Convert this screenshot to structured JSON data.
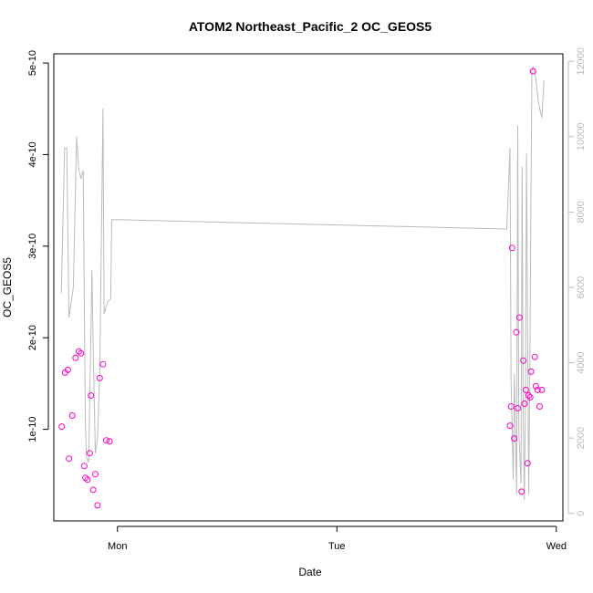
{
  "chart_data": {
    "type": "scatter",
    "title": "ATOM2 Northeast_Pacific_2 OC_GEOS5",
    "xlabel": "Date",
    "ylabel": "OC_GEOS5",
    "x_ticks": [
      "Mon",
      "Tue",
      "Wed"
    ],
    "y_ticks": [
      "1e-10",
      "2e-10",
      "3e-10",
      "4e-10",
      "5e-10"
    ],
    "y_tick_values": [
      1e-10,
      2e-10,
      3e-10,
      4e-10,
      5e-10
    ],
    "y2_ticks": [
      "0",
      "2000",
      "4000",
      "6000",
      "8000",
      "10000",
      "12000"
    ],
    "y2_tick_values": [
      0,
      2000,
      4000,
      6000,
      8000,
      10000,
      12000
    ],
    "xlim": [
      -0.29,
      2.03
    ],
    "ylim": [
      0.0,
      5.1e-10
    ],
    "y2lim": [
      -200,
      12200
    ],
    "grid": false,
    "colors": {
      "points": "#ff00cc",
      "line": "#bbbbbb",
      "axis": "#000000",
      "axis_right": "#bbbbbb"
    },
    "series": [
      {
        "type": "scatter",
        "axis": "left",
        "x": [
          -0.254,
          -0.239,
          -0.226,
          -0.221,
          -0.206,
          -0.191,
          -0.176,
          -0.166,
          -0.151,
          -0.146,
          -0.136,
          -0.126,
          -0.121,
          -0.111,
          -0.101,
          -0.091,
          -0.081,
          -0.066,
          -0.051,
          -0.036,
          1.789,
          1.794,
          1.799,
          1.808,
          1.818,
          1.824,
          1.832,
          1.842,
          1.85,
          1.855,
          1.861,
          1.869,
          1.874,
          1.881,
          1.885,
          1.894,
          1.902,
          1.907,
          1.915,
          1.924,
          1.934
        ],
        "y": [
          1.03e-10,
          1.62e-10,
          1.65e-10,
          6.8e-11,
          1.15e-10,
          1.78e-10,
          1.85e-10,
          1.83e-10,
          6e-11,
          4.7e-11,
          4.5e-11,
          7.4e-11,
          1.37e-10,
          3.4e-11,
          5.1e-11,
          1.7e-11,
          1.56e-10,
          1.71e-10,
          8.8e-11,
          8.7e-11,
          1.04e-10,
          1.25e-10,
          2.98e-10,
          9e-11,
          2.06e-10,
          1.23e-10,
          2.22e-10,
          3.2e-11,
          1.75e-10,
          1.28e-10,
          1.43e-10,
          6.3e-11,
          1.37e-10,
          1.35e-10,
          1.63e-10,
          4.91e-10,
          1.79e-10,
          1.47e-10,
          1.43e-10,
          1.25e-10,
          1.43e-10
        ]
      },
      {
        "type": "line",
        "axis": "right",
        "x": [
          -0.256,
          -0.241,
          -0.231,
          -0.221,
          -0.201,
          -0.186,
          -0.176,
          -0.166,
          -0.156,
          -0.146,
          -0.141,
          -0.131,
          -0.116,
          -0.111,
          -0.101,
          -0.091,
          -0.081,
          -0.066,
          -0.061,
          -0.046,
          -0.031,
          -0.026,
          1.774,
          1.789,
          1.794,
          1.804,
          1.809,
          1.819,
          1.824,
          1.829,
          1.839,
          1.844,
          1.849,
          1.854,
          1.859,
          1.864,
          1.874,
          1.879,
          1.884,
          1.889,
          1.894,
          1.904,
          1.919,
          1.934,
          1.944
        ],
        "y": [
          5850,
          9700,
          9700,
          5200,
          6000,
          10000,
          9100,
          8900,
          9100,
          2300,
          1500,
          1350,
          6450,
          4500,
          1600,
          2000,
          3700,
          10750,
          5300,
          5600,
          5700,
          7800,
          7550,
          9700,
          3500,
          900,
          3700,
          500,
          10300,
          2200,
          800,
          9200,
          2600,
          350,
          2700,
          9550,
          500,
          3500,
          8200,
          11800,
          11850,
          11650,
          10900,
          10500,
          11500
        ]
      }
    ]
  }
}
